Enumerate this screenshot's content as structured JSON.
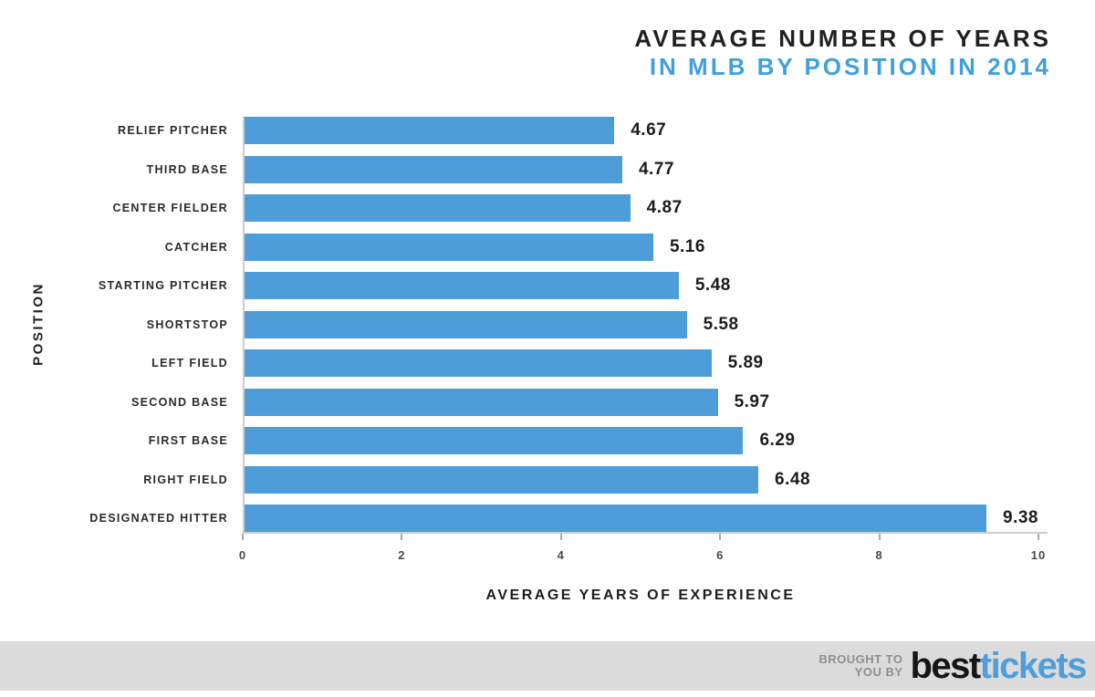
{
  "title": {
    "line1": "AVERAGE NUMBER OF YEARS",
    "line2": "IN MLB BY POSITION IN 2014"
  },
  "chart_data": {
    "type": "bar",
    "orientation": "horizontal",
    "title": "AVERAGE NUMBER OF YEARS IN MLB BY POSITION IN 2014",
    "categories": [
      "RELIEF PITCHER",
      "THIRD BASE",
      "CENTER FIELDER",
      "CATCHER",
      "STARTING PITCHER",
      "SHORTSTOP",
      "LEFT FIELD",
      "SECOND BASE",
      "FIRST BASE",
      "RIGHT FIELD",
      "DESIGNATED HITTER"
    ],
    "values": [
      4.67,
      4.77,
      4.87,
      5.16,
      5.48,
      5.58,
      5.89,
      5.97,
      6.29,
      6.48,
      9.38
    ],
    "xlabel": "AVERAGE YEARS OF EXPERIENCE",
    "ylabel": "POSITION",
    "xlim": [
      0,
      10
    ],
    "xticks": [
      0,
      2,
      4,
      6,
      8,
      10
    ],
    "bar_color": "#4D9DD9",
    "grid": false,
    "legend": false,
    "value_decimals": 2
  },
  "footer": {
    "tagline_line1": "BROUGHT TO",
    "tagline_line2": "YOU BY",
    "brand_black": "best",
    "brand_blue": "tickets"
  }
}
